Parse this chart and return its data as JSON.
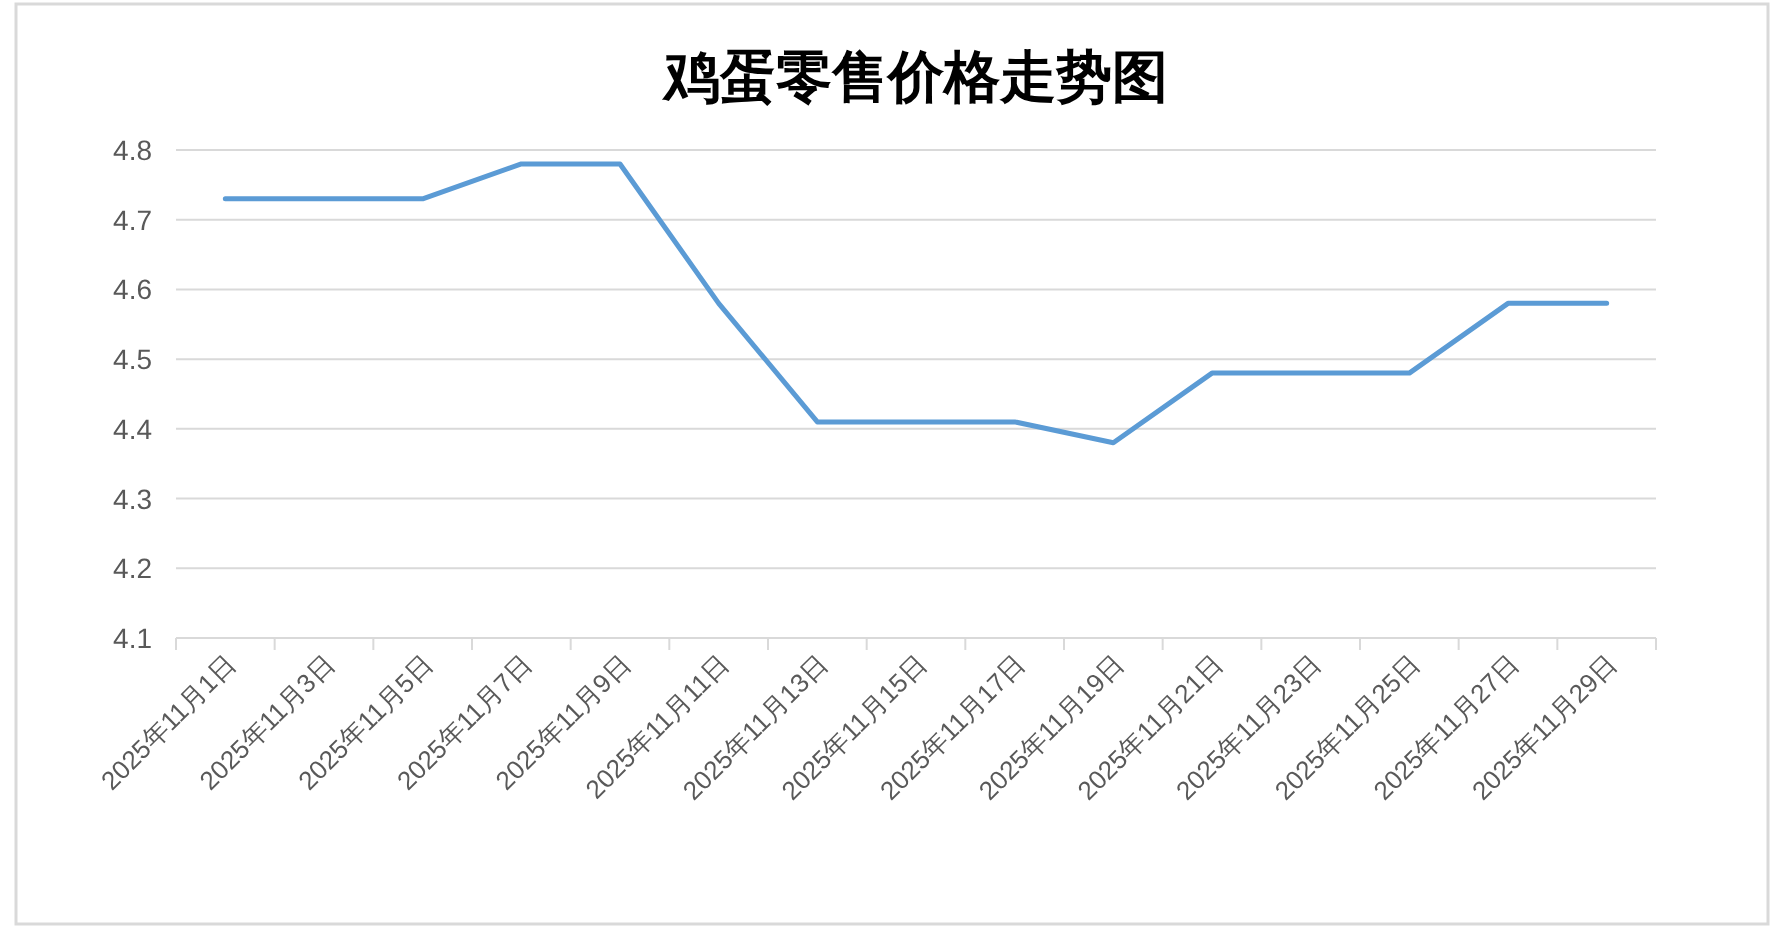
{
  "chart_data": {
    "type": "line",
    "title": "鸡蛋零售价格走势图",
    "categories": [
      "2025年11月1日",
      "2025年11月3日",
      "2025年11月5日",
      "2025年11月7日",
      "2025年11月9日",
      "2025年11月11日",
      "2025年11月13日",
      "2025年11月15日",
      "2025年11月17日",
      "2025年11月19日",
      "2025年11月21日",
      "2025年11月23日",
      "2025年11月25日",
      "2025年11月27日",
      "2025年11月29日"
    ],
    "series": [
      {
        "color": "#5b9bd5",
        "values": [
          4.73,
          4.73,
          4.73,
          4.78,
          4.78,
          4.58,
          4.41,
          4.41,
          4.41,
          4.38,
          4.48,
          4.48,
          4.48,
          4.58,
          4.58
        ]
      }
    ],
    "ylim": [
      4.1,
      4.8
    ],
    "yticks": [
      4.1,
      4.2,
      4.3,
      4.4,
      4.5,
      4.6,
      4.7,
      4.8
    ],
    "grid": "y",
    "marker": "none",
    "line_style": "solid"
  }
}
